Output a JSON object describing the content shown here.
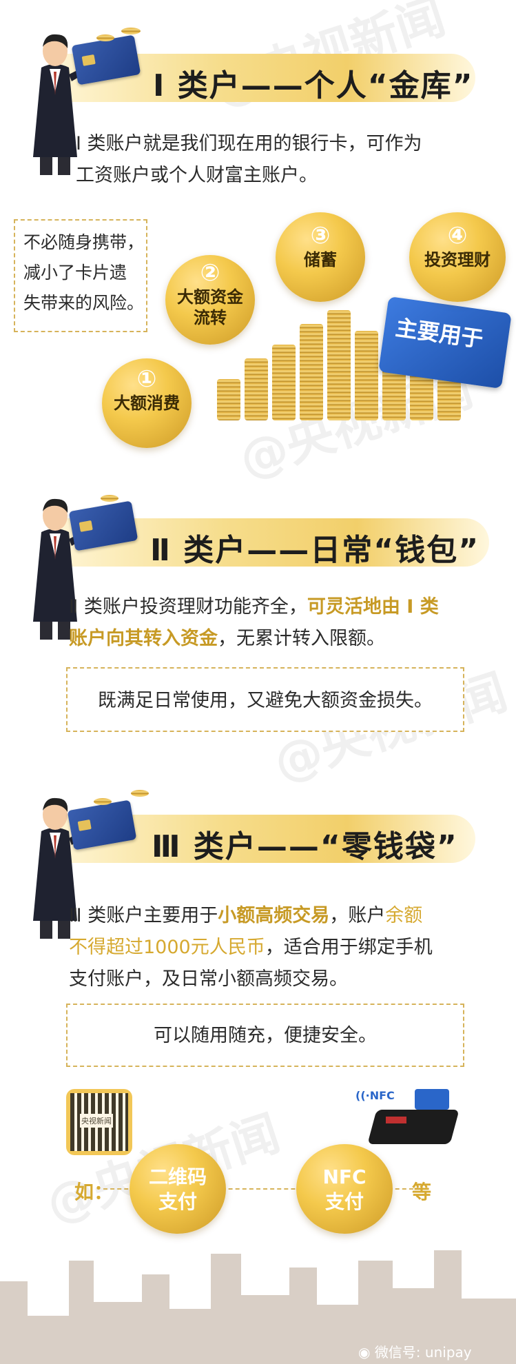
{
  "section1": {
    "title": "Ⅰ 类户——个人“金库”",
    "desc_line1": "Ⅰ 类账户就是我们现在用的银行卡，可作为",
    "desc_line2": "工资账户或个人财富主账户。",
    "note_line1": "不必随身携带，",
    "note_line2": "减小了卡片遗",
    "note_line3": "失带来的风险。",
    "card_label": "主要用于",
    "uses": [
      {
        "num": "①",
        "label": "大额消费"
      },
      {
        "num": "②",
        "label_line1": "大额资金",
        "label_line2": "流转"
      },
      {
        "num": "③",
        "label": "储蓄"
      },
      {
        "num": "④",
        "label": "投资理财"
      }
    ]
  },
  "section2": {
    "title": "Ⅱ 类户——日常“钱包”",
    "desc_part1": "Ⅱ 类账户投资理财功能齐全，",
    "desc_highlight1": "可灵活地由 Ⅰ 类",
    "desc_highlight2": "账户向其转入资金",
    "desc_part2": "，无累计转入限额。",
    "note": "既满足日常使用，又避免大额资金损失。"
  },
  "section3": {
    "title": "Ⅲ 类户——“零钱袋”",
    "desc_part1": "Ⅲ 类账户主要用于",
    "desc_highlight1": "小额高频交易",
    "desc_part2": "，账户",
    "desc_highlight2": "余额",
    "desc_highlight3": "不得超过1000元人民币",
    "desc_part3": "，适合用于绑定手机",
    "desc_line3": "支付账户，及日常小额高频交易。",
    "note": "可以随用随充，便捷安全。",
    "prefix": "如：",
    "suffix": "等",
    "pay1_line1": "二维码",
    "pay1_line2": "支付",
    "pay2_line1": "NFC",
    "pay2_line2": "支付",
    "nfc_tag": "NFC",
    "qr_logo": "央视新闻"
  },
  "watermark": "@央视新闻",
  "footer": "微信号: unipay",
  "colors": {
    "gold": "#c79a25",
    "banner": "#f2cf6a",
    "circle": "#f4c94c",
    "card_blue": "#2a66c9"
  }
}
